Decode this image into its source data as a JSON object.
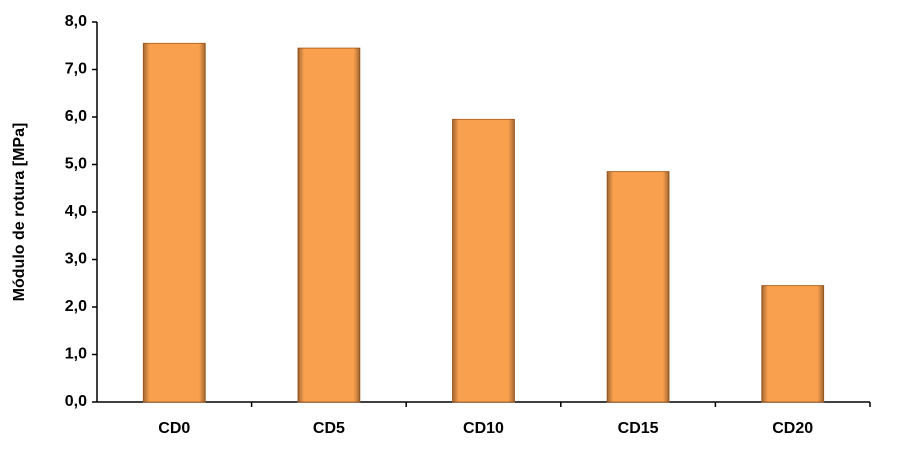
{
  "chart_data": {
    "type": "bar",
    "y_label": "Módulo de rotura [MPa]",
    "categories": [
      "CD0",
      "CD5",
      "CD10",
      "CD15",
      "CD20"
    ],
    "values": [
      7.55,
      7.45,
      5.95,
      4.85,
      2.45
    ],
    "color": "#f9a04e",
    "ylim": [
      0,
      8
    ],
    "yticks": [
      {
        "value": 0,
        "label": "0,0"
      },
      {
        "value": 1,
        "label": "1,0"
      },
      {
        "value": 2,
        "label": "2,0"
      },
      {
        "value": 3,
        "label": "3,0"
      },
      {
        "value": 4,
        "label": "4,0"
      },
      {
        "value": 5,
        "label": "5,0"
      },
      {
        "value": 6,
        "label": "6,0"
      },
      {
        "value": 7,
        "label": "7,0"
      },
      {
        "value": 8,
        "label": "8,0"
      }
    ],
    "grid": false
  }
}
